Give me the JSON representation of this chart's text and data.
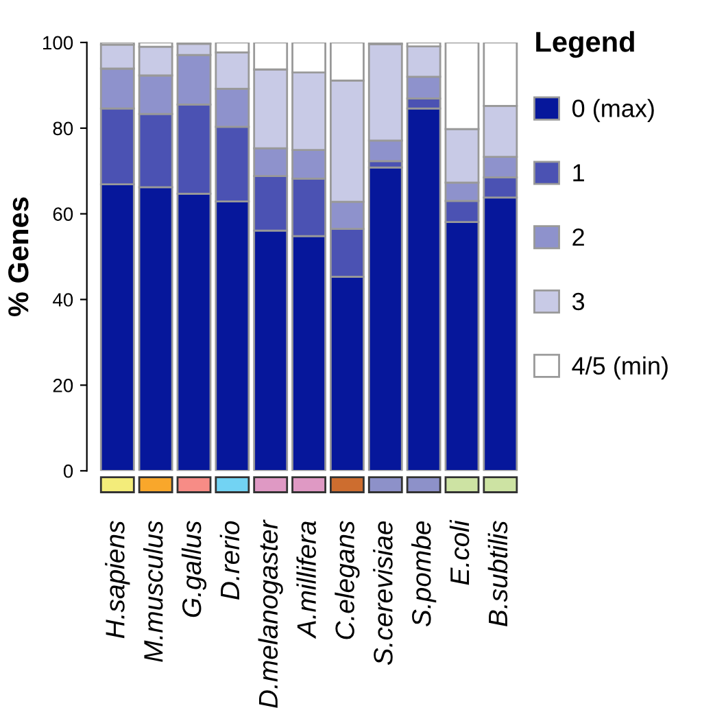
{
  "chart_data": {
    "type": "bar",
    "stacked": true,
    "ylabel": "% Genes",
    "legend_title": "Legend",
    "legend": "right",
    "grid": false,
    "categories": [
      "H.sapiens",
      "M.musculus",
      "G.gallus",
      "D.rerio",
      "D.melanogaster",
      "A.millifera",
      "C.elegans",
      "S.cerevisiae",
      "S.pombe",
      "E.coli",
      "B.subtilis"
    ],
    "ylim": [
      0,
      100
    ],
    "yticks": [
      0,
      20,
      40,
      60,
      80,
      100
    ],
    "series": [
      {
        "name": "0 (max)",
        "color": "#06179b",
        "values": [
          66.9,
          66.2,
          64.7,
          62.9,
          56.1,
          54.8,
          45.3,
          70.8,
          84.6,
          58.1,
          63.8
        ]
      },
      {
        "name": "1",
        "color": "#4b52b3",
        "values": [
          17.7,
          17.1,
          20.8,
          17.4,
          12.7,
          13.4,
          11.2,
          1.5,
          2.3,
          4.9,
          4.7
        ]
      },
      {
        "name": "2",
        "color": "#8e92cc",
        "values": [
          9.3,
          9.0,
          11.6,
          8.9,
          6.5,
          6.7,
          6.3,
          4.8,
          5.1,
          4.3,
          4.8
        ]
      },
      {
        "name": "3",
        "color": "#c8cae6",
        "values": [
          5.6,
          6.7,
          2.6,
          8.5,
          18.4,
          18.1,
          28.3,
          22.5,
          7.1,
          12.5,
          11.9
        ]
      },
      {
        "name": "4/5 (min)",
        "color": "#ffffff",
        "values": [
          0.5,
          1.0,
          0.3,
          2.3,
          6.3,
          7.0,
          8.9,
          0.4,
          0.9,
          20.2,
          14.8
        ]
      }
    ]
  }
}
